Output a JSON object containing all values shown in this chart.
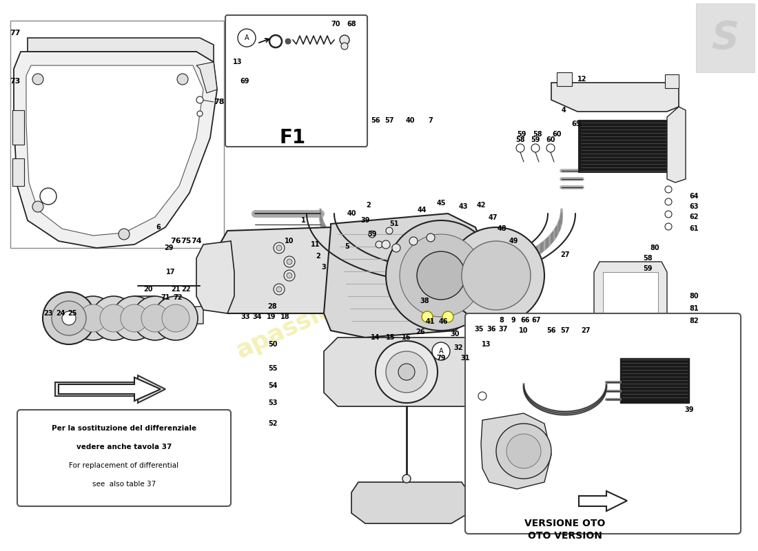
{
  "bg_color": "#ffffff",
  "watermark": "apassion4cars.com",
  "watermark_color": "#e8e060",
  "watermark_alpha": 0.45,
  "note_text_line1": "Per la sostituzione del differenziale",
  "note_text_line2": "vedere anche tavola 37",
  "note_text_line3": "For replacement of differential",
  "note_text_line4": "see  also table 37",
  "oto_version_line1": "VERSIONE OTO",
  "oto_version_line2": "OTO VERSION",
  "f1_label": "F1",
  "line_color": "#222222",
  "light_fill": "#e8e8e8",
  "mid_fill": "#cccccc",
  "dark_fill": "#1a1a1a"
}
